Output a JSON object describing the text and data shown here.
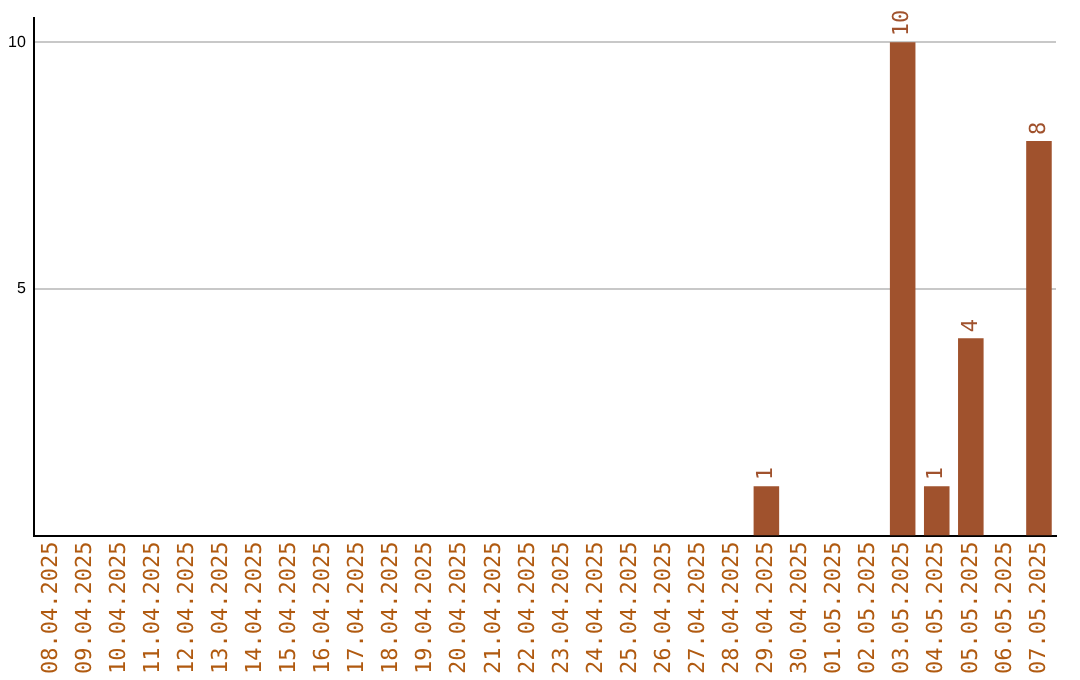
{
  "chart_data": {
    "type": "bar",
    "categories": [
      "08.04.2025",
      "09.04.2025",
      "10.04.2025",
      "11.04.2025",
      "12.04.2025",
      "13.04.2025",
      "14.04.2025",
      "15.04.2025",
      "16.04.2025",
      "17.04.2025",
      "18.04.2025",
      "19.04.2025",
      "20.04.2025",
      "21.04.2025",
      "22.04.2025",
      "23.04.2025",
      "24.04.2025",
      "25.04.2025",
      "26.04.2025",
      "27.04.2025",
      "28.04.2025",
      "29.04.2025",
      "30.04.2025",
      "01.05.2025",
      "02.05.2025",
      "03.05.2025",
      "04.05.2025",
      "05.05.2025",
      "06.05.2025",
      "07.05.2025"
    ],
    "values": [
      0,
      0,
      0,
      0,
      0,
      0,
      0,
      0,
      0,
      0,
      0,
      0,
      0,
      0,
      0,
      0,
      0,
      0,
      0,
      0,
      0,
      1,
      0,
      0,
      0,
      10,
      1,
      4,
      0,
      8
    ],
    "value_labels": [
      null,
      null,
      null,
      null,
      null,
      null,
      null,
      null,
      null,
      null,
      null,
      null,
      null,
      null,
      null,
      null,
      null,
      null,
      null,
      null,
      null,
      "1",
      null,
      null,
      null,
      "10",
      "1",
      "4",
      null,
      "8"
    ],
    "color": "#a0522d",
    "ylim": [
      0,
      10.5
    ],
    "yticks": [
      5,
      10
    ],
    "grid": "y"
  }
}
